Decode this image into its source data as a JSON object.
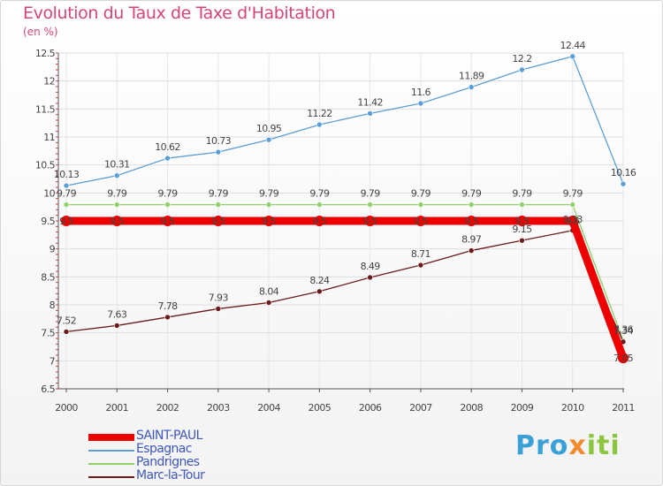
{
  "title": "Evolution du Taux de Taxe d'Habitation",
  "subtitle": "(en %)",
  "logo_text": "Proxiti",
  "chart_data": {
    "type": "line",
    "x": [
      "2000",
      "2001",
      "2002",
      "2003",
      "2004",
      "2005",
      "2006",
      "2007",
      "2008",
      "2009",
      "2010",
      "2011"
    ],
    "ylim": [
      6.5,
      12.5
    ],
    "yticks": [
      "6.5",
      "7",
      "7.5",
      "8",
      "8.5",
      "9",
      "9.5",
      "10",
      "10.5",
      "11",
      "11.5",
      "12",
      "12.5"
    ],
    "grid": true,
    "legend_position": "bottom-left",
    "series": [
      {
        "name": "SAINT-PAUL",
        "color": "#ee0000",
        "values": [
          9.5,
          9.5,
          9.5,
          9.5,
          9.5,
          9.5,
          9.5,
          9.5,
          9.5,
          9.5,
          9.5,
          7.05
        ],
        "labels": [
          "9.5",
          "9.5",
          "9.5",
          "9.5",
          "9.5",
          "9.5",
          "9.5",
          "9.5",
          "9.5",
          "9.5",
          "9.5",
          "7.05"
        ]
      },
      {
        "name": "Espagnac",
        "color": "#5b9fd6",
        "values": [
          10.13,
          10.31,
          10.62,
          10.73,
          10.95,
          11.22,
          11.42,
          11.6,
          11.89,
          12.2,
          12.44,
          10.16
        ],
        "labels": [
          "10.13",
          "10.31",
          "10.62",
          "10.73",
          "10.95",
          "11.22",
          "11.42",
          "11.6",
          "11.89",
          "12.2",
          "12.44",
          "10.16"
        ]
      },
      {
        "name": "Pandrignes",
        "color": "#8fd16a",
        "values": [
          9.79,
          9.79,
          9.79,
          9.79,
          9.79,
          9.79,
          9.79,
          9.79,
          9.79,
          9.79,
          9.79,
          7.36
        ],
        "labels": [
          "9.79",
          "9.79",
          "9.79",
          "9.79",
          "9.79",
          "9.79",
          "9.79",
          "9.79",
          "9.79",
          "9.79",
          "9.79",
          "7.36"
        ]
      },
      {
        "name": "Marc-la-Tour",
        "color": "#6b1b1b",
        "values": [
          7.52,
          7.63,
          7.78,
          7.93,
          8.04,
          8.24,
          8.49,
          8.71,
          8.97,
          9.15,
          9.33,
          7.34
        ],
        "labels": [
          "7.52",
          "7.63",
          "7.78",
          "7.93",
          "8.04",
          "8.24",
          "8.49",
          "8.71",
          "8.97",
          "9.15",
          "9.33",
          "7.34"
        ]
      }
    ]
  }
}
